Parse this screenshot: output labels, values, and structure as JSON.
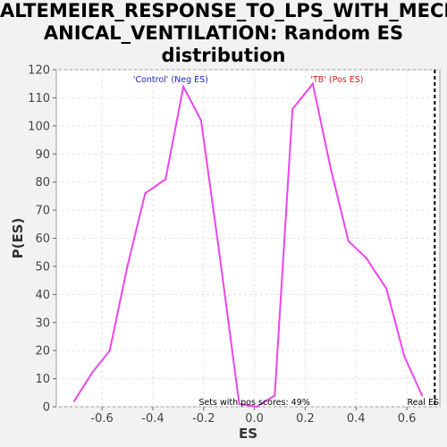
{
  "chart_data": {
    "type": "line",
    "title": "ALTEMEIER_RESPONSE_TO_LPS_WITH_MECHANICAL_VENTILATION: Random ES distribution",
    "title_lines": [
      "ALTEMEIER_RESPONSE_TO_LPS_WITH_MECH",
      "ANICAL_VENTILATION: Random ES",
      "distribution"
    ],
    "xlabel": "ES",
    "ylabel": "P(ES)",
    "xlim": [
      -0.78,
      0.73
    ],
    "ylim": [
      0,
      120
    ],
    "x_ticks": [
      -0.6,
      -0.4,
      -0.2,
      0.0,
      0.2,
      0.4,
      0.6
    ],
    "x_tick_labels": [
      "-0.6",
      "-0.4",
      "-0.2",
      "0.0",
      "0.2",
      "0.4",
      "0.6"
    ],
    "y_ticks": [
      0,
      10,
      20,
      30,
      40,
      50,
      60,
      70,
      80,
      90,
      100,
      110,
      120
    ],
    "y_tick_labels": [
      "0",
      "10",
      "20",
      "30",
      "40",
      "50",
      "60",
      "70",
      "80",
      "90",
      "100",
      "110",
      "120"
    ],
    "grid": true,
    "series_color": "#ee44ee",
    "x": [
      -0.71,
      -0.64,
      -0.57,
      -0.5,
      -0.43,
      -0.35,
      -0.28,
      -0.21,
      -0.14,
      -0.06,
      0.01,
      0.08,
      0.15,
      0.23,
      0.3,
      0.37,
      0.44,
      0.52,
      0.59,
      0.66
    ],
    "y": [
      2,
      12,
      20,
      50,
      76,
      81,
      114,
      102,
      56,
      1,
      0,
      4,
      106,
      115,
      85,
      59,
      53,
      42,
      18,
      4
    ],
    "real_es": 0.71,
    "real_es_label": "Real ES",
    "annotations": {
      "control": {
        "text": "'Control' (Neg ES)",
        "color": "#2222cc"
      },
      "tb": {
        "text": "'TB' (Pos ES)",
        "color": "#cc2222"
      },
      "pos_scores": {
        "text": "Sets with pos scores: 49%",
        "color": "#000000"
      }
    }
  }
}
